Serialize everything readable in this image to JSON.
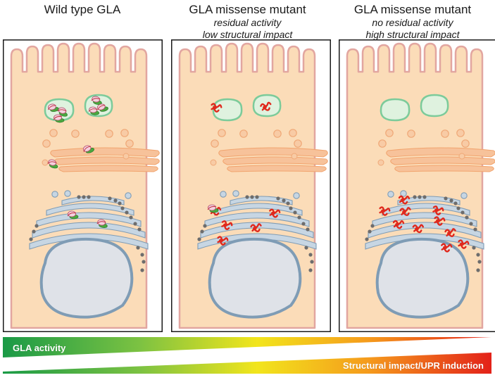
{
  "panels": [
    {
      "title": "Wild type GLA",
      "subtitle_1": "",
      "subtitle_2": "",
      "state": "wild-type"
    },
    {
      "title": "GLA missense mutant",
      "subtitle_1": "residual activity",
      "subtitle_2": "low structural impact",
      "state": "low-impact"
    },
    {
      "title": "GLA missense mutant",
      "subtitle_1": "no residual activity",
      "subtitle_2": "high structural impact",
      "state": "high-impact"
    }
  ],
  "bars": {
    "gla_activity_label": "GLA activity",
    "structural_label": "Structural impact/UPR induction"
  },
  "colors": {
    "cell_fill": "#fbdcb8",
    "cell_border": "#e2a6a0",
    "er_fill": "#c7d6e3",
    "er_border": "#7f9cb5",
    "nucleus_fill": "#dfe2e8",
    "golgi_fill": "#f7c29a",
    "lysosome_fill": "#dff2df",
    "lysosome_border": "#7ccb9a",
    "mutant_red": "#e0281c",
    "wild_type_green": "#49a83e"
  }
}
